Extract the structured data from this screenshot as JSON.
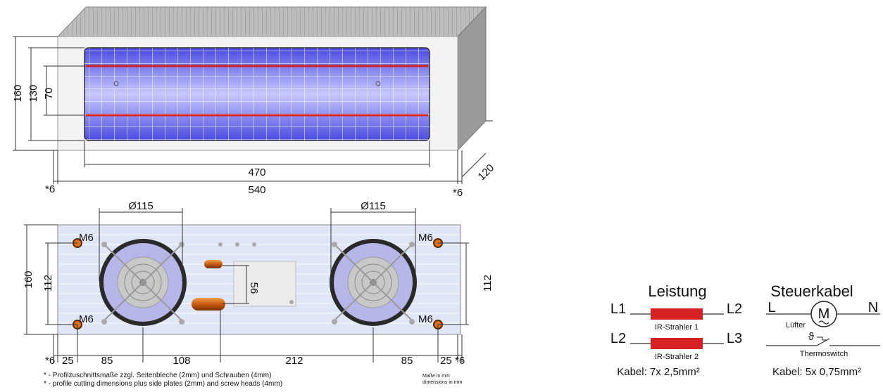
{
  "front_view": {
    "dims": {
      "height_total": "160",
      "height_inner": "130",
      "height_tube": "70",
      "width_inner": "470",
      "width_total": "540",
      "cut_left": "*6",
      "cut_right": "*6",
      "depth": "120"
    }
  },
  "bottom_view": {
    "fan_diameter_left": "Ø115",
    "fan_diameter_right": "Ø115",
    "thread_labels": [
      "M6",
      "M6",
      "M6",
      "M6"
    ],
    "dims": {
      "height_total": "160",
      "hole_spacing_left": "112",
      "hole_spacing_right": "112",
      "plate_height": "56",
      "bottom_row": [
        "*6",
        "25",
        "85",
        "108",
        "212",
        "85",
        "25",
        "*6"
      ]
    }
  },
  "notes": {
    "line1": "* - Profilzuschnittsmaße zzgl. Seitenbleche (2mm) und Schrauben (4mm)",
    "line2": "* - profile cutting dimensions plus side plates (2mm) and screw heads (4mm)",
    "units_de": "Maße in mm",
    "units_en": "dimensions in mm"
  },
  "wiring_power": {
    "title": "Leistung",
    "row1_left": "L1",
    "row1_right": "L2",
    "row1_label": "IR-Strahler 1",
    "row2_left": "L2",
    "row2_right": "L3",
    "row2_label": "IR-Strahler 2",
    "cable": "Kabel: 7x 2,5mm²"
  },
  "wiring_control": {
    "title": "Steuerkabel",
    "left": "L",
    "right": "N",
    "motor_symbol": "M",
    "fan_label": "Lüfter",
    "thermo_symbol": "ϑ",
    "thermo_label": "Thermoswitch",
    "cable": "Kabel: 5x 0,75mm²"
  },
  "colors": {
    "heater_red": "#d42222",
    "ir_glow": "#6a6af0",
    "frame": "#c8c8c8"
  }
}
